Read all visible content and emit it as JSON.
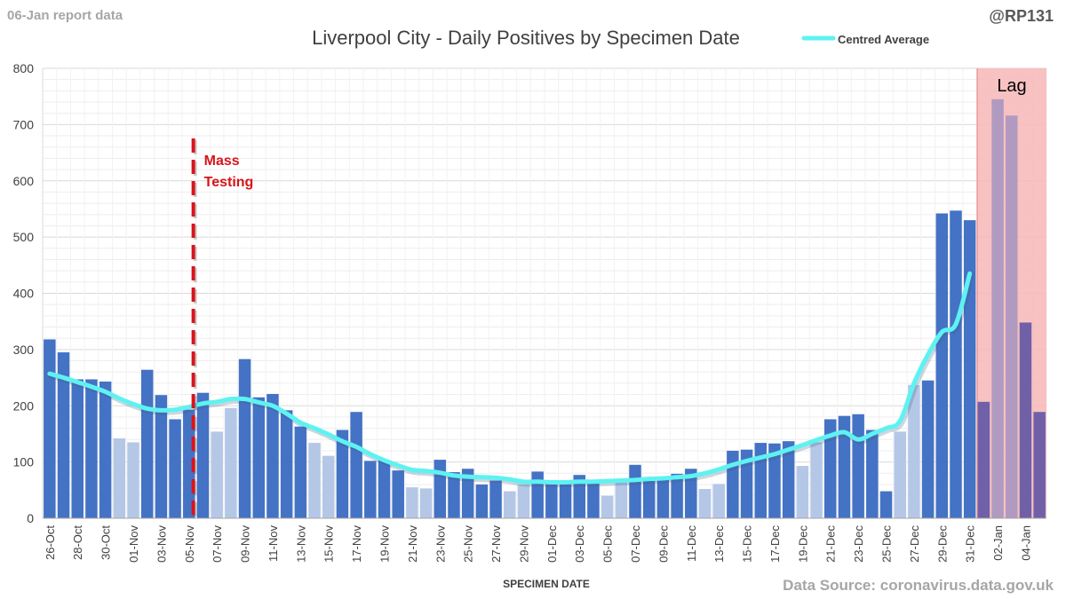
{
  "header": {
    "report_label": "06-Jan report data",
    "author_handle": "@RP131",
    "source_note": "Data Source: coronavirus.data.gov.uk"
  },
  "chart_data": {
    "type": "bar",
    "title": "Liverpool City - Daily Positives by Specimen Date",
    "xlabel": "SPECIMEN DATE",
    "ylabel": "",
    "ylim": [
      0,
      800
    ],
    "yticks": [
      0,
      100,
      200,
      300,
      400,
      500,
      600,
      700,
      800
    ],
    "grid": true,
    "legend_position": "top-right",
    "categories": [
      "26-Oct",
      "27-Oct",
      "28-Oct",
      "29-Oct",
      "30-Oct",
      "31-Oct",
      "01-Nov",
      "02-Nov",
      "03-Nov",
      "04-Nov",
      "05-Nov",
      "06-Nov",
      "07-Nov",
      "08-Nov",
      "09-Nov",
      "10-Nov",
      "11-Nov",
      "12-Nov",
      "13-Nov",
      "14-Nov",
      "15-Nov",
      "16-Nov",
      "17-Nov",
      "18-Nov",
      "19-Nov",
      "20-Nov",
      "21-Nov",
      "22-Nov",
      "23-Nov",
      "24-Nov",
      "25-Nov",
      "26-Nov",
      "27-Nov",
      "28-Nov",
      "29-Nov",
      "30-Nov",
      "01-Dec",
      "02-Dec",
      "03-Dec",
      "04-Dec",
      "05-Dec",
      "06-Dec",
      "07-Dec",
      "08-Dec",
      "09-Dec",
      "10-Dec",
      "11-Dec",
      "12-Dec",
      "13-Dec",
      "14-Dec",
      "15-Dec",
      "16-Dec",
      "17-Dec",
      "18-Dec",
      "19-Dec",
      "20-Dec",
      "21-Dec",
      "22-Dec",
      "23-Dec",
      "24-Dec",
      "25-Dec",
      "26-Dec",
      "27-Dec",
      "28-Dec",
      "29-Dec",
      "30-Dec",
      "31-Dec",
      "01-Jan",
      "02-Jan",
      "03-Jan",
      "04-Jan",
      "05-Jan"
    ],
    "tick_labels": [
      "26-Oct",
      "28-Oct",
      "30-Oct",
      "01-Nov",
      "03-Nov",
      "05-Nov",
      "07-Nov",
      "09-Nov",
      "11-Nov",
      "13-Nov",
      "15-Nov",
      "17-Nov",
      "19-Nov",
      "21-Nov",
      "23-Nov",
      "25-Nov",
      "27-Nov",
      "29-Nov",
      "01-Dec",
      "03-Dec",
      "05-Dec",
      "07-Dec",
      "09-Dec",
      "11-Dec",
      "13-Dec",
      "15-Dec",
      "17-Dec",
      "19-Dec",
      "21-Dec",
      "23-Dec",
      "25-Dec",
      "27-Dec",
      "29-Dec",
      "31-Dec",
      "02-Jan",
      "04-Jan"
    ],
    "values": [
      318,
      295,
      247,
      247,
      243,
      142,
      135,
      264,
      219,
      176,
      193,
      223,
      154,
      196,
      283,
      215,
      221,
      192,
      163,
      134,
      111,
      157,
      189,
      102,
      103,
      85,
      55,
      53,
      104,
      82,
      88,
      60,
      67,
      48,
      60,
      83,
      66,
      65,
      77,
      65,
      40,
      65,
      95,
      70,
      70,
      79,
      88,
      52,
      61,
      120,
      122,
      134,
      133,
      137,
      93,
      135,
      176,
      182,
      185,
      157,
      48,
      154,
      237,
      245,
      542,
      547,
      530,
      207,
      745,
      716,
      348,
      189
    ],
    "bar_kind": [
      "weekday",
      "weekday",
      "weekday",
      "weekday",
      "weekday",
      "weekend",
      "weekend",
      "weekday",
      "weekday",
      "weekday",
      "weekday",
      "weekday",
      "weekend",
      "weekend",
      "weekday",
      "weekday",
      "weekday",
      "weekday",
      "weekday",
      "weekend",
      "weekend",
      "weekday",
      "weekday",
      "weekday",
      "weekday",
      "weekday",
      "weekend",
      "weekend",
      "weekday",
      "weekday",
      "weekday",
      "weekday",
      "weekday",
      "weekend",
      "weekend",
      "weekday",
      "weekday",
      "weekday",
      "weekday",
      "weekday",
      "weekend",
      "weekend",
      "weekday",
      "weekday",
      "weekday",
      "weekday",
      "weekday",
      "weekend",
      "weekend",
      "weekday",
      "weekday",
      "weekday",
      "weekday",
      "weekday",
      "weekend",
      "weekend",
      "weekday",
      "weekday",
      "weekday",
      "weekday",
      "weekday",
      "weekend",
      "weekend",
      "weekday",
      "weekday",
      "weekday",
      "weekday",
      "lag",
      "lag",
      "lag",
      "lag",
      "lag"
    ],
    "series": [
      {
        "name": "Centred Average",
        "type": "line",
        "values": [
          257,
          250,
          242,
          234,
          225,
          213,
          203,
          195,
          192,
          193,
          198,
          204,
          207,
          212,
          212,
          206,
          200,
          186,
          170,
          160,
          149,
          137,
          127,
          114,
          103,
          94,
          86,
          84,
          81,
          76,
          74,
          73,
          72,
          69,
          65,
          65,
          64,
          64,
          65,
          65,
          66,
          67,
          68,
          70,
          71,
          73,
          75,
          80,
          87,
          95,
          102,
          108,
          114,
          122,
          130,
          139,
          147,
          153,
          140,
          150,
          160,
          173,
          240,
          291,
          331,
          345,
          435,
          null,
          null,
          null,
          null,
          null
        ]
      }
    ],
    "annotations": [
      {
        "label": "Mass Testing",
        "at": "05-Nov",
        "style": "vertical-dashed-line",
        "color": "#d8141b"
      },
      {
        "label": "Lag",
        "from": "01-Jan",
        "to": "05-Jan",
        "style": "shaded-region",
        "color": "#f7b7b7"
      }
    ],
    "colors": {
      "weekday": "#4472c4",
      "weekend": "#b4c7e7",
      "lag_weekday": "#7060a8",
      "lag_tall": "#b09ac0",
      "average": "#5ef2f2",
      "annotation_red": "#d8141b",
      "lag_shade": "#f7b7b7",
      "grid": "#d9d9d9"
    }
  }
}
